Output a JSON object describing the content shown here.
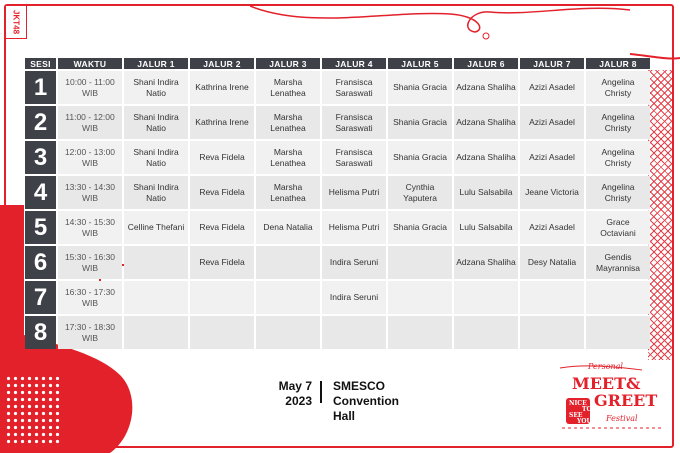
{
  "header": {
    "columns": [
      "SESI",
      "WAKTU",
      "JALUR 1",
      "JALUR 2",
      "JALUR 3",
      "JALUR 4",
      "JALUR 5",
      "JALUR 6",
      "JALUR 7",
      "JALUR 8"
    ]
  },
  "rows": [
    {
      "sesi": "1",
      "time": "10:00 - 11:00 WIB",
      "j": [
        "Shani Indira Natio",
        "Kathrina Irene",
        "Marsha Lenathea",
        "Fransisca Saraswati",
        "Shania Gracia",
        "Adzana Shaliha",
        "Azizi Asadel",
        "Angelina Christy"
      ]
    },
    {
      "sesi": "2",
      "time": "11:00 - 12:00 WIB",
      "j": [
        "Shani Indira Natio",
        "Kathrina Irene",
        "Marsha Lenathea",
        "Fransisca Saraswati",
        "Shania Gracia",
        "Adzana Shaliha",
        "Azizi Asadel",
        "Angelina Christy"
      ]
    },
    {
      "sesi": "3",
      "time": "12:00 - 13:00 WIB",
      "j": [
        "Shani Indira Natio",
        "Reva Fidela",
        "Marsha Lenathea",
        "Fransisca Saraswati",
        "Shania Gracia",
        "Adzana Shaliha",
        "Azizi Asadel",
        "Angelina Christy"
      ]
    },
    {
      "sesi": "4",
      "time": "13:30 - 14:30 WIB",
      "j": [
        "Shani Indira Natio",
        "Reva Fidela",
        "Marsha Lenathea",
        "Helisma Putri",
        "Cynthia Yaputera",
        "Lulu Salsabila",
        "Jeane Victoria",
        "Angelina Christy"
      ]
    },
    {
      "sesi": "5",
      "time": "14:30 - 15:30 WIB",
      "j": [
        "Celline Thefani",
        "Reva Fidela",
        "Dena Natalia",
        "Helisma Putri",
        "Shania Gracia",
        "Lulu Salsabila",
        "Azizi Asadel",
        "Grace Octaviani"
      ]
    },
    {
      "sesi": "6",
      "time": "15:30 - 16:30 WIB",
      "j": [
        "",
        "Reva Fidela",
        "",
        "Indira Seruni",
        "",
        "Adzana Shaliha",
        "Desy Natalia",
        "Gendis Mayrannisa"
      ]
    },
    {
      "sesi": "7",
      "time": "16:30 - 17:30 WIB",
      "j": [
        "",
        "",
        "",
        "Indira Seruni",
        "",
        "",
        "",
        ""
      ]
    },
    {
      "sesi": "8",
      "time": "17:30 - 18:30 WIB",
      "j": [
        "",
        "",
        "",
        "",
        "",
        "",
        "",
        ""
      ]
    }
  ],
  "event": {
    "date_line1": "May 7",
    "date_line2": "2023",
    "venue_line1": "SMESCO",
    "venue_line2": "Convention",
    "venue_line3": "Hall"
  },
  "logo": {
    "personal": "Personal",
    "meet": "MEET&",
    "greet": "GREET",
    "festival": "Festival",
    "nice": "NICE",
    "to": "TO",
    "see": "SEE",
    "you": "YOU",
    "jkt": "JKT48"
  },
  "colors": {
    "accent": "#e3212b",
    "header_bg": "#3e4148",
    "cell_bg": "#f1f1f2"
  }
}
